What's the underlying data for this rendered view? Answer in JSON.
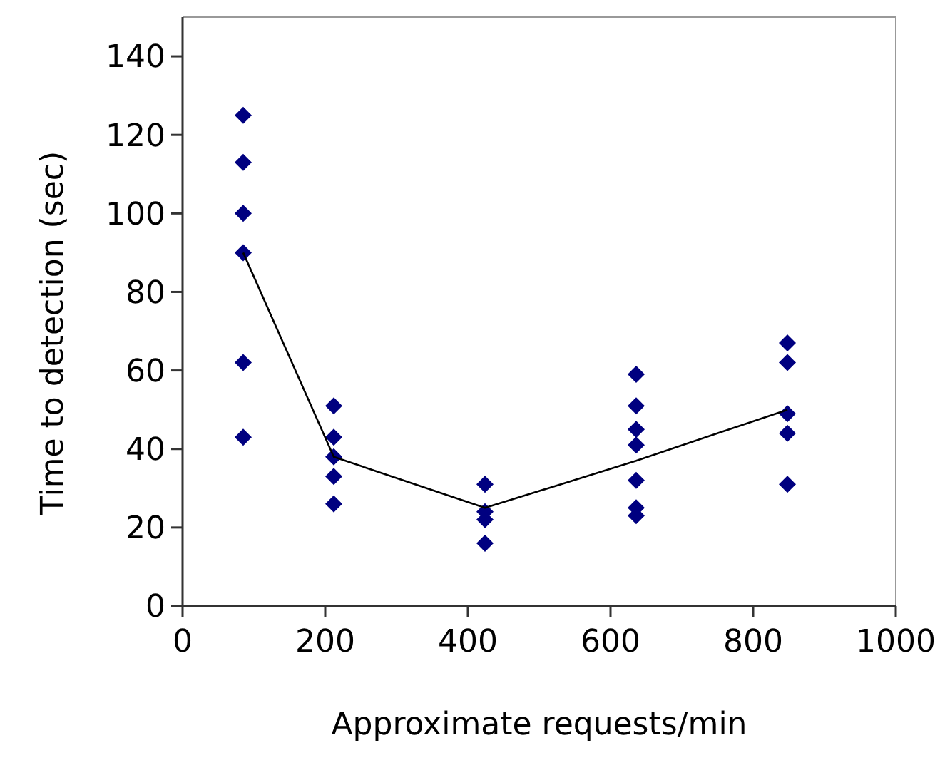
{
  "chart_data": {
    "type": "scatter",
    "xlabel": "Approximate requests/min",
    "ylabel": "Time to detection (sec)",
    "xlim": [
      0,
      1000
    ],
    "xticks": [
      0,
      200,
      400,
      600,
      800,
      1000
    ],
    "ylim": [
      0,
      150
    ],
    "yticks": [
      0,
      20,
      40,
      60,
      80,
      100,
      120,
      140
    ],
    "grid": false,
    "series": [
      {
        "color": "#000080",
        "marker": "diamond",
        "x": [
          85,
          85,
          85,
          85,
          85,
          85,
          212,
          212,
          212,
          212,
          212,
          424,
          424,
          424,
          424,
          636,
          636,
          636,
          636,
          636,
          636,
          636,
          848,
          848,
          848,
          848,
          848
        ],
        "values": [
          125,
          113,
          100,
          90,
          62,
          43,
          51,
          43,
          38,
          33,
          26,
          31,
          24,
          22,
          16,
          59,
          51,
          45,
          41,
          32,
          25,
          23,
          67,
          62,
          49,
          44,
          31
        ]
      },
      {
        "type": "line",
        "color": "#000000",
        "marker": "none",
        "line_style": "solid",
        "x": [
          85,
          212,
          424,
          636,
          848
        ],
        "values": [
          90,
          38,
          25,
          37,
          50
        ]
      }
    ]
  }
}
